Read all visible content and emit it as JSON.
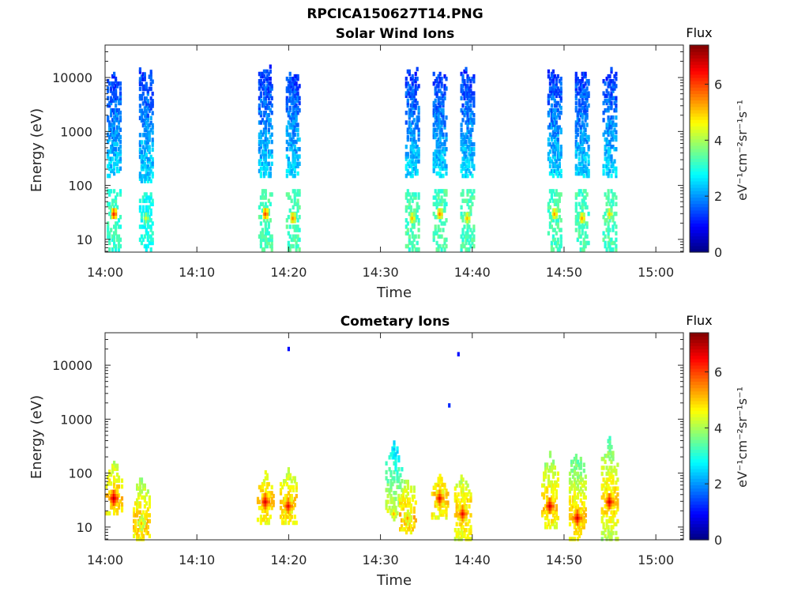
{
  "figure": {
    "title": "RPCICA150627T14.PNG"
  },
  "chart_data": [
    {
      "type": "heatmap",
      "title": "Solar Wind Ions",
      "xlabel": "Time",
      "ylabel": "Energy (eV)",
      "xticks": [
        "14:00",
        "14:10",
        "14:20",
        "14:30",
        "14:40",
        "14:50",
        "15:00"
      ],
      "xlim": [
        "14:00",
        "15:03"
      ],
      "yticks": [
        10,
        100,
        1000,
        10000
      ],
      "ylim": [
        5.8,
        40000
      ],
      "yscale": "log",
      "colorbar": {
        "title": "Flux",
        "label": "eV⁻¹cm⁻²sr⁻¹s⁻¹",
        "ticks": [
          0,
          2,
          4,
          6
        ],
        "range": [
          0,
          7.4
        ],
        "colormap": "jet"
      },
      "bursts": [
        {
          "t": "14:01",
          "high_emax": 12000,
          "high_emin": 150,
          "high_flux": 1.2,
          "low_emax": 80,
          "low_flux": 3.2,
          "peak_flux": 6.2,
          "peak_energy": 30
        },
        {
          "t": "14:04.5",
          "high_emax": 15000,
          "high_emin": 120,
          "high_flux": 1.2,
          "low_emax": 70,
          "low_flux": 2.9,
          "peak_flux": 4.5,
          "peak_energy": 25
        },
        {
          "t": "14:17.5",
          "high_emax": 20000,
          "high_emin": 150,
          "high_flux": 1.2,
          "low_emax": 80,
          "low_flux": 3.3,
          "peak_flux": 6.0,
          "peak_energy": 30
        },
        {
          "t": "14:20.5",
          "high_emax": 15000,
          "high_emin": 150,
          "high_flux": 1.2,
          "low_emax": 80,
          "low_flux": 3.3,
          "peak_flux": 5.6,
          "peak_energy": 25
        },
        {
          "t": "14:33.5",
          "high_emax": 15000,
          "high_emin": 150,
          "high_flux": 1.2,
          "low_emax": 80,
          "low_flux": 3.3,
          "peak_flux": 5.2,
          "peak_energy": 25
        },
        {
          "t": "14:36.5",
          "high_emax": 15000,
          "high_emin": 150,
          "high_flux": 1.2,
          "low_emax": 80,
          "low_flux": 3.3,
          "peak_flux": 5.6,
          "peak_energy": 30
        },
        {
          "t": "14:39.5",
          "high_emax": 15000,
          "high_emin": 150,
          "high_flux": 1.2,
          "low_emax": 80,
          "low_flux": 3.3,
          "peak_flux": 5.2,
          "peak_energy": 25
        },
        {
          "t": "14:49",
          "high_emax": 15000,
          "high_emin": 150,
          "high_flux": 1.2,
          "low_emax": 80,
          "low_flux": 3.3,
          "peak_flux": 5.4,
          "peak_energy": 30
        },
        {
          "t": "14:52",
          "high_emax": 15000,
          "high_emin": 150,
          "high_flux": 1.2,
          "low_emax": 80,
          "low_flux": 3.3,
          "peak_flux": 5.4,
          "peak_energy": 25
        },
        {
          "t": "14:55",
          "high_emax": 15000,
          "high_emin": 150,
          "high_flux": 1.2,
          "low_emax": 80,
          "low_flux": 3.3,
          "peak_flux": 5.0,
          "peak_energy": 30
        }
      ]
    },
    {
      "type": "heatmap",
      "title": "Cometary Ions",
      "xlabel": "Time",
      "ylabel": "Energy (eV)",
      "xticks": [
        "14:00",
        "14:10",
        "14:20",
        "14:30",
        "14:40",
        "14:50",
        "15:00"
      ],
      "xlim": [
        "14:00",
        "15:03"
      ],
      "yticks": [
        10,
        100,
        1000,
        10000
      ],
      "ylim": [
        5.8,
        40000
      ],
      "yscale": "log",
      "colorbar": {
        "title": "Flux",
        "label": "eV⁻¹cm⁻²sr⁻¹s⁻¹",
        "ticks": [
          0,
          2,
          4,
          6
        ],
        "range": [
          0,
          7.4
        ],
        "colormap": "jet"
      },
      "bursts": [
        {
          "t": "14:01",
          "emax": 200,
          "emin": 18,
          "flux": 3.3,
          "peak_flux": 7.0,
          "peak_energy": 35
        },
        {
          "t": "14:04",
          "emax": 100,
          "emin": 6,
          "flux": 3.3,
          "peak_flux": 5.2,
          "peak_energy": 12
        },
        {
          "t": "14:17.5",
          "emax": 120,
          "emin": 12,
          "flux": 3.3,
          "peak_flux": 6.8,
          "peak_energy": 30
        },
        {
          "t": "14:20",
          "emax": 150,
          "emin": 12,
          "flux": 3.3,
          "peak_flux": 6.6,
          "peak_energy": 25
        },
        {
          "t": "14:31.5",
          "emax": 400,
          "emin": 20,
          "flux": 2.6,
          "peak_flux": 5.2,
          "peak_energy": 18
        },
        {
          "t": "14:33",
          "emax": 100,
          "emin": 8,
          "flux": 3.3,
          "peak_flux": 5.4,
          "peak_energy": 15
        },
        {
          "t": "14:36.5",
          "emax": 120,
          "emin": 15,
          "flux": 3.3,
          "peak_flux": 6.6,
          "peak_energy": 35
        },
        {
          "t": "14:39",
          "emax": 120,
          "emin": 6,
          "flux": 3.3,
          "peak_flux": 6.6,
          "peak_energy": 18
        },
        {
          "t": "14:48.5",
          "emax": 250,
          "emin": 10,
          "flux": 3.3,
          "peak_flux": 6.8,
          "peak_energy": 25
        },
        {
          "t": "14:51.5",
          "emax": 300,
          "emin": 6,
          "flux": 3.3,
          "peak_flux": 6.8,
          "peak_energy": 15
        },
        {
          "t": "14:55",
          "emax": 500,
          "emin": 6,
          "flux": 3.3,
          "peak_flux": 6.8,
          "peak_energy": 30
        }
      ],
      "isolated_points": [
        {
          "t": "14:20",
          "energy": 20000,
          "flux": 1.0
        },
        {
          "t": "14:38.5",
          "energy": 16000,
          "flux": 1.0
        },
        {
          "t": "14:37.5",
          "energy": 1800,
          "flux": 1.2
        }
      ]
    }
  ]
}
